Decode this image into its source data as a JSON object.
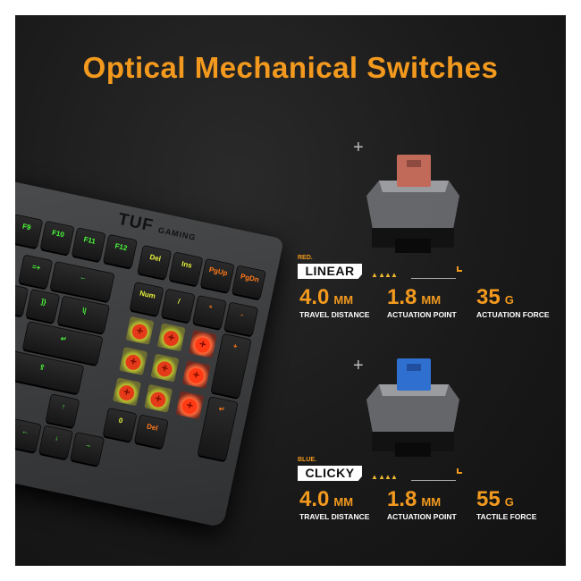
{
  "title": "Optical Mechanical Switches",
  "colors": {
    "accent": "#f39a1e",
    "red_stem": "#c26a5a",
    "blue_stem": "#2f6fd0",
    "background": "#1a1a1a"
  },
  "keyboard": {
    "logo": {
      "main": "TUF",
      "sub": "GAMING"
    },
    "keys": [
      "F9",
      "F10",
      "F11",
      "F12",
      "Del",
      "Ins",
      "PgUp",
      "PgDn",
      "=+",
      "←",
      "[{",
      "]}",
      "\\|",
      "Num",
      "/",
      "*",
      "-",
      "↵",
      "+",
      "⇧",
      "↑",
      "↵",
      "←",
      "↓",
      "→",
      "0",
      "Del"
    ]
  },
  "switches": [
    {
      "variant": "RED.",
      "type": "LINEAR",
      "stem_color": "#c26a5a",
      "icon": "plus-icon",
      "stats": [
        {
          "value": "4.0",
          "unit": "MM",
          "label": "TRAVEL DISTANCE"
        },
        {
          "value": "1.8",
          "unit": "MM",
          "label": "ACTUATION POINT"
        },
        {
          "value": "35",
          "unit": "G",
          "label": "ACTUATION FORCE"
        }
      ]
    },
    {
      "variant": "BLUE.",
      "type": "CLICKY",
      "stem_color": "#2f6fd0",
      "icon": "plus-icon",
      "stats": [
        {
          "value": "4.0",
          "unit": "MM",
          "label": "TRAVEL DISTANCE"
        },
        {
          "value": "1.8",
          "unit": "MM",
          "label": "ACTUATION POINT"
        },
        {
          "value": "55",
          "unit": "G",
          "label": "TACTILE FORCE"
        }
      ]
    }
  ]
}
